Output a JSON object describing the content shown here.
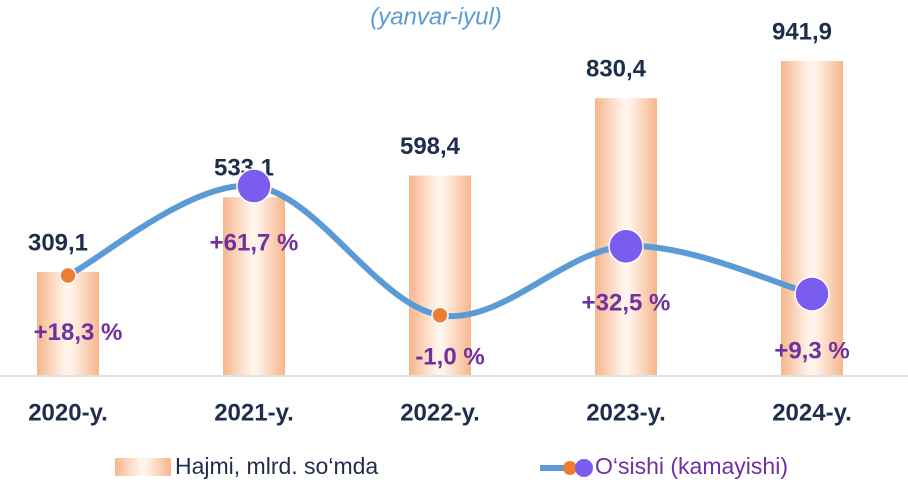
{
  "chart_data": {
    "type": "bar_line",
    "subtitle": "(yanvar-iyul)",
    "categories": [
      "2020-y.",
      "2021-y.",
      "2022-y.",
      "2023-y.",
      "2024-y."
    ],
    "ylim": [
      0,
      1125
    ],
    "y2lim": [
      -30,
      152
    ],
    "series": [
      {
        "name": "Hajmi, mlrd. so‘mda",
        "type": "bar",
        "color": "#f9c9a8",
        "values": [
          309.1,
          533.1,
          598.4,
          830.4,
          941.9
        ],
        "value_labels": [
          "309,1",
          "533,1",
          "598,4",
          "830,4",
          "941,9"
        ]
      },
      {
        "name": "O‘sishi (kamayishi)",
        "type": "line",
        "axis": "y2",
        "color": "#5b9bd5",
        "values": [
          18.3,
          61.7,
          -1.0,
          32.5,
          9.3
        ],
        "value_labels": [
          "+18,3 %",
          "+61,7 %",
          "-1,0 %",
          "+32,5 %",
          "+9,3 %"
        ],
        "point_colors": [
          "#ed7d31",
          "#7b5cf0",
          "#ed7d31",
          "#7b5cf0",
          "#7b5cf0"
        ]
      }
    ]
  }
}
